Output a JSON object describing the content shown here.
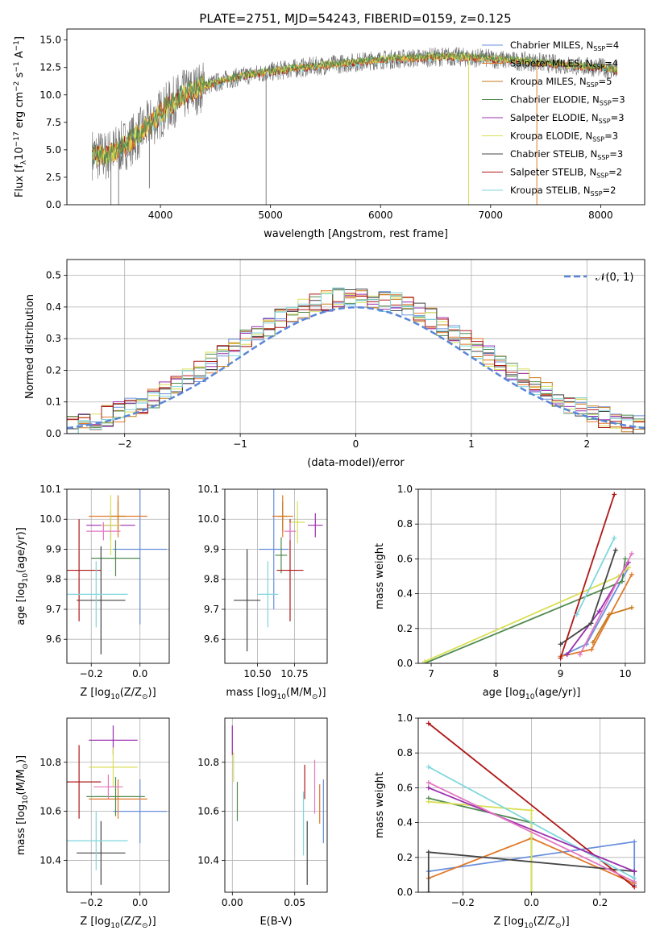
{
  "figure": {
    "title": "PLATE=2751, MJD=54243, FIBERID=0159, z=0.125"
  },
  "models": [
    {
      "name": "Chabrier MILES, N_SSP=4",
      "color": "#6a8fdc"
    },
    {
      "name": "Salpeter MILES, N_SSP=4",
      "color": "#e07a2b"
    },
    {
      "name": "Kroupa MILES, N_SSP=5",
      "color": "#c97a1a"
    },
    {
      "name": "Chabrier ELODIE, N_SSP=3",
      "color": "#4f8a4f"
    },
    {
      "name": "Salpeter ELODIE, N_SSP=3",
      "color": "#9b2fb0"
    },
    {
      "name": "Kroupa ELODIE, N_SSP=3",
      "color": "#d8df55"
    },
    {
      "name": "Chabrier STELIB, N_SSP=3",
      "color": "#444444"
    },
    {
      "name": "Salpeter STELIB, N_SSP=2",
      "color": "#b01818"
    },
    {
      "name": "Kroupa STELIB, N_SSP=2",
      "color": "#7fd6dc"
    }
  ],
  "legend_labels": [
    {
      "base": "Chabrier MILES, N",
      "sub": "SSP",
      "tail": "=4"
    },
    {
      "base": "Salpeter MILES, N",
      "sub": "SSP",
      "tail": "=4"
    },
    {
      "base": "Kroupa MILES, N",
      "sub": "SSP",
      "tail": "=5"
    },
    {
      "base": "Chabrier ELODIE, N",
      "sub": "SSP",
      "tail": "=3"
    },
    {
      "base": "Salpeter ELODIE, N",
      "sub": "SSP",
      "tail": "=3"
    },
    {
      "base": "Kroupa ELODIE, N",
      "sub": "SSP",
      "tail": "=3"
    },
    {
      "base": "Chabrier STELIB, N",
      "sub": "SSP",
      "tail": "=3"
    },
    {
      "base": "Salpeter STELIB, N",
      "sub": "SSP",
      "tail": "=2"
    },
    {
      "base": "Kroupa STELIB, N",
      "sub": "SSP",
      "tail": "=2"
    }
  ],
  "chart_data": [
    {
      "id": "spectrum",
      "type": "line",
      "title": "PLATE=2751, MJD=54243, FIBERID=0159, z=0.125",
      "xlabel": "wavelength [Angstrom, rest frame]",
      "ylabel_parts": [
        "Flux [f",
        "λ",
        "10",
        "−17",
        " erg cm",
        "−2",
        " s",
        "−1",
        " A",
        "−1",
        "]"
      ],
      "xlim": [
        3150,
        8400
      ],
      "ylim": [
        0,
        16
      ],
      "xticks": [
        "4000",
        "5000",
        "6000",
        "7000",
        "8000"
      ],
      "yticks": [
        "0.0",
        "2.5",
        "5.0",
        "7.5",
        "10.0",
        "12.5",
        "15.0"
      ],
      "continuum": {
        "x": [
          3380,
          3500,
          3600,
          3700,
          3800,
          3900,
          4000,
          4100,
          4200,
          4300,
          4400,
          4600,
          4800,
          5000,
          5200,
          5400,
          5600,
          5800,
          6000,
          6200,
          6400,
          6600,
          6800,
          7000,
          7200,
          7400,
          7600,
          7800,
          8000,
          8150
        ],
        "y": [
          4.6,
          4.4,
          5.0,
          5.6,
          6.4,
          7.3,
          8.3,
          9.2,
          9.9,
          10.4,
          10.8,
          11.4,
          11.8,
          12.1,
          12.4,
          12.6,
          12.8,
          13.0,
          13.2,
          13.3,
          13.4,
          13.5,
          13.4,
          13.3,
          13.1,
          13.0,
          12.8,
          12.6,
          12.5,
          12.2
        ]
      },
      "spikes_down": [
        {
          "x": 3550,
          "y": 0
        },
        {
          "x": 3620,
          "y": 0
        },
        {
          "x": 3900,
          "y": 1.5
        },
        {
          "x": 4960,
          "y": 0
        },
        {
          "x": 6800,
          "y": 0
        },
        {
          "x": 7420,
          "y": 0
        }
      ]
    },
    {
      "id": "residuals",
      "type": "histogram",
      "xlabel": "(data-model)/error",
      "ylabel": "Normed distribution",
      "xlim": [
        -2.5,
        2.5
      ],
      "ylim": [
        0,
        0.55
      ],
      "xticks": [
        "−2",
        "−1",
        "0",
        "1",
        "2"
      ],
      "yticks": [
        "0.0",
        "0.1",
        "0.2",
        "0.3",
        "0.4",
        "0.5"
      ],
      "reference_label": "𝒩(0, 1)",
      "reference": {
        "mean": 0,
        "sigma": 1
      }
    },
    {
      "id": "age_vs_Z",
      "type": "errorbar",
      "xlabel_parts": [
        "Z [log",
        "10",
        "(Z/Z",
        "⊙",
        ")]"
      ],
      "ylabel_parts": [
        "age  [log",
        "10",
        "(age/yr)]"
      ],
      "xlim": [
        -0.3,
        0.12
      ],
      "ylim": [
        9.52,
        10.1
      ],
      "xticks": [
        "−0.2",
        "0.0"
      ],
      "yticks": [
        "9.6",
        "9.7",
        "9.8",
        "9.9",
        "10.0",
        "10.1"
      ],
      "points": [
        {
          "model": 0,
          "x": 0.0,
          "y": 9.9,
          "xerr": 0.11,
          "yerr": 0.25
        },
        {
          "model": 1,
          "x": -0.09,
          "y": 10.01,
          "xerr": 0.12,
          "yerr": 0.07
        },
        {
          "model": 2,
          "x": -0.09,
          "y": 10.01,
          "xerr": 0.03,
          "yerr": 0.05
        },
        {
          "model": 3,
          "x": -0.1,
          "y": 9.87,
          "xerr": 0.1,
          "yerr": 0.06
        },
        {
          "model": 4,
          "x": -0.12,
          "y": 9.98,
          "xerr": 0.1,
          "yerr": 0.05
        },
        {
          "model": 5,
          "x": -0.12,
          "y": 9.98,
          "xerr": 0.04,
          "yerr": 0.1
        },
        {
          "model": 6,
          "x": -0.16,
          "y": 9.73,
          "xerr": 0.1,
          "yerr": 0.18
        },
        {
          "model": 7,
          "x": -0.25,
          "y": 9.83,
          "xerr": 0.09,
          "yerr": 0.17
        },
        {
          "model": 8,
          "x": -0.18,
          "y": 9.75,
          "xerr": 0.13,
          "yerr": 0.11
        },
        {
          "model": 0,
          "x": -0.15,
          "y": 9.96,
          "xerr": 0.07,
          "yerr": 0.03,
          "alt": "#e377c2"
        }
      ]
    },
    {
      "id": "age_vs_mass",
      "type": "errorbar",
      "xlabel_parts": [
        "mass [log",
        "10",
        "(M/M",
        "⊙",
        ")]"
      ],
      "xlim": [
        10.28,
        10.97
      ],
      "ylim": [
        9.52,
        10.1
      ],
      "xticks": [
        "10.50",
        "10.75"
      ],
      "yticks": [
        "9.6",
        "9.7",
        "9.8",
        "9.9",
        "10.0",
        "10.1"
      ],
      "points": [
        {
          "model": 0,
          "x": 10.61,
          "y": 9.9,
          "xerr": 0.1,
          "yerr": 0.2
        },
        {
          "model": 1,
          "x": 10.67,
          "y": 10.01,
          "xerr": 0.07,
          "yerr": 0.07
        },
        {
          "model": 2,
          "x": 10.67,
          "y": 10.01,
          "xerr": 0.03,
          "yerr": 0.05
        },
        {
          "model": 3,
          "x": 10.66,
          "y": 9.88,
          "xerr": 0.04,
          "yerr": 0.06
        },
        {
          "model": 4,
          "x": 10.89,
          "y": 9.98,
          "xerr": 0.05,
          "yerr": 0.04
        },
        {
          "model": 5,
          "x": 10.77,
          "y": 9.99,
          "xerr": 0.05,
          "yerr": 0.07
        },
        {
          "model": 6,
          "x": 10.43,
          "y": 9.73,
          "xerr": 0.09,
          "yerr": 0.17
        },
        {
          "model": 7,
          "x": 10.72,
          "y": 9.83,
          "xerr": 0.09,
          "yerr": 0.17
        },
        {
          "model": 8,
          "x": 10.57,
          "y": 9.75,
          "xerr": 0.07,
          "yerr": 0.11
        },
        {
          "model": 0,
          "x": 10.72,
          "y": 9.96,
          "xerr": 0.04,
          "yerr": 0.03,
          "alt": "#e377c2"
        }
      ]
    },
    {
      "id": "weight_vs_age",
      "type": "line",
      "xlabel_parts": [
        "age  [log",
        "10",
        "(age/yr)]"
      ],
      "ylabel": "mass weight",
      "xlim": [
        6.8,
        10.3
      ],
      "ylim": [
        0,
        1
      ],
      "xticks": [
        "7",
        "8",
        "9",
        "10"
      ],
      "yticks": [
        "0.0",
        "0.2",
        "0.4",
        "0.6",
        "0.8",
        "1.0"
      ],
      "series": [
        {
          "model": 0,
          "x": [
            9.0,
            9.4,
            10.05
          ],
          "y": [
            0.04,
            0.11,
            0.55
          ]
        },
        {
          "model": 1,
          "x": [
            9.0,
            9.48,
            10.1
          ],
          "y": [
            0.04,
            0.08,
            0.51
          ]
        },
        {
          "model": 2,
          "x": [
            9.5,
            9.75,
            10.1
          ],
          "y": [
            0.12,
            0.28,
            0.32
          ]
        },
        {
          "model": 3,
          "x": [
            6.9,
            9.95,
            10.0
          ],
          "y": [
            0.0,
            0.47,
            0.6
          ]
        },
        {
          "model": 4,
          "x": [
            9.1,
            9.6,
            10.05
          ],
          "y": [
            0.05,
            0.3,
            0.58
          ]
        },
        {
          "model": 5,
          "x": [
            6.9,
            9.9,
            10.05
          ],
          "y": [
            0.01,
            0.5,
            0.55
          ]
        },
        {
          "model": 6,
          "x": [
            9.0,
            9.47,
            9.85
          ],
          "y": [
            0.11,
            0.23,
            0.65
          ]
        },
        {
          "model": 7,
          "x": [
            9.0,
            9.83
          ],
          "y": [
            0.03,
            0.97
          ]
        },
        {
          "model": 8,
          "x": [
            9.25,
            9.83
          ],
          "y": [
            0.28,
            0.72
          ]
        },
        {
          "model": 0,
          "x": [
            9.3,
            10.1
          ],
          "y": [
            0.05,
            0.63
          ],
          "alt": "#e377c2"
        }
      ]
    },
    {
      "id": "mass_vs_Z",
      "type": "errorbar",
      "xlabel_parts": [
        "Z [log",
        "10",
        "(Z/Z",
        "⊙",
        ")]"
      ],
      "ylabel_parts": [
        "mass [log",
        "10",
        "(M/M",
        "⊙",
        ")]"
      ],
      "xlim": [
        -0.3,
        0.12
      ],
      "ylim": [
        10.27,
        10.98
      ],
      "xticks": [
        "−0.2",
        "0.0"
      ],
      "yticks": [
        "10.4",
        "10.6",
        "10.8"
      ],
      "points": [
        {
          "model": 0,
          "x": 0.0,
          "y": 10.6,
          "xerr": 0.11,
          "yerr": 0.13
        },
        {
          "model": 1,
          "x": -0.09,
          "y": 10.65,
          "xerr": 0.12,
          "yerr": 0.08
        },
        {
          "model": 3,
          "x": -0.1,
          "y": 10.66,
          "xerr": 0.12,
          "yerr": 0.08
        },
        {
          "model": 4,
          "x": -0.11,
          "y": 10.89,
          "xerr": 0.1,
          "yerr": 0.06
        },
        {
          "model": 5,
          "x": -0.11,
          "y": 10.78,
          "xerr": 0.1,
          "yerr": 0.08
        },
        {
          "model": 6,
          "x": -0.16,
          "y": 10.43,
          "xerr": 0.1,
          "yerr": 0.13
        },
        {
          "model": 7,
          "x": -0.25,
          "y": 10.72,
          "xerr": 0.09,
          "yerr": 0.15
        },
        {
          "model": 8,
          "x": -0.18,
          "y": 10.48,
          "xerr": 0.13,
          "yerr": 0.12
        },
        {
          "model": 0,
          "x": -0.13,
          "y": 10.7,
          "xerr": 0.06,
          "yerr": 0.05,
          "alt": "#e377c2"
        }
      ]
    },
    {
      "id": "mass_vs_ebv",
      "type": "errorbar",
      "xlabel": "E(B-V)",
      "xlim": [
        -0.006,
        0.076
      ],
      "ylim": [
        10.27,
        10.98
      ],
      "xticks": [
        "0.00",
        "0.05"
      ],
      "yticks": [
        "10.4",
        "10.6",
        "10.8"
      ],
      "points": [
        {
          "model": 4,
          "x": 0.0,
          "y": 10.89,
          "xerr": 0,
          "yerr": 0.06
        },
        {
          "model": 5,
          "x": 0.001,
          "y": 10.78,
          "xerr": 0,
          "yerr": 0.06
        },
        {
          "model": 3,
          "x": 0.004,
          "y": 10.64,
          "xerr": 0,
          "yerr": 0.08
        },
        {
          "model": 8,
          "x": 0.057,
          "y": 10.55,
          "xerr": 0,
          "yerr": 0.13
        },
        {
          "model": 7,
          "x": 0.058,
          "y": 10.72,
          "xerr": 0,
          "yerr": 0.07
        },
        {
          "model": 6,
          "x": 0.06,
          "y": 10.43,
          "xerr": 0,
          "yerr": 0.13
        },
        {
          "model": 0,
          "x": 0.073,
          "y": 10.6,
          "xerr": 0,
          "yerr": 0.13
        },
        {
          "model": 1,
          "x": 0.07,
          "y": 10.63,
          "xerr": 0,
          "yerr": 0.08
        },
        {
          "model": 0,
          "x": 0.066,
          "y": 10.7,
          "xerr": 0,
          "yerr": 0.11,
          "alt": "#e377c2"
        }
      ]
    },
    {
      "id": "weight_vs_Z",
      "type": "line",
      "xlabel_parts": [
        "Z [log",
        "10",
        "(Z/Z",
        "⊙",
        ")]"
      ],
      "ylabel": "mass weight",
      "xlim": [
        -0.33,
        0.33
      ],
      "ylim": [
        0,
        1
      ],
      "xticks": [
        "−0.2",
        "0.0",
        "0.2"
      ],
      "yticks": [
        "0.0",
        "0.2",
        "0.4",
        "0.6",
        "0.8",
        "1.0"
      ],
      "series": [
        {
          "model": 0,
          "x": [
            -0.3,
            0.3,
            0.3
          ],
          "y": [
            0.12,
            0.29,
            0.04
          ]
        },
        {
          "model": 1,
          "x": [
            -0.3,
            0.0,
            0.3
          ],
          "y": [
            0.08,
            0.31,
            0.05
          ]
        },
        {
          "model": 3,
          "x": [
            -0.3,
            0.0,
            0.0
          ],
          "y": [
            0.54,
            0.4,
            0.0
          ]
        },
        {
          "model": 5,
          "x": [
            -0.3,
            0.0,
            0.0
          ],
          "y": [
            0.52,
            0.47,
            0.0
          ]
        },
        {
          "model": 6,
          "x": [
            -0.3,
            -0.3,
            0.3,
            0.3
          ],
          "y": [
            0.0,
            0.23,
            0.12,
            0.12
          ]
        },
        {
          "model": 7,
          "x": [
            -0.3,
            0.3
          ],
          "y": [
            0.97,
            0.03
          ]
        },
        {
          "model": 8,
          "x": [
            -0.3,
            0.3
          ],
          "y": [
            0.72,
            0.08
          ]
        },
        {
          "model": 4,
          "x": [
            -0.3,
            0.3
          ],
          "y": [
            0.6,
            0.12
          ]
        },
        {
          "model": 0,
          "x": [
            -0.3,
            0.3
          ],
          "y": [
            0.63,
            0.06
          ],
          "alt": "#e377c2"
        }
      ]
    }
  ]
}
